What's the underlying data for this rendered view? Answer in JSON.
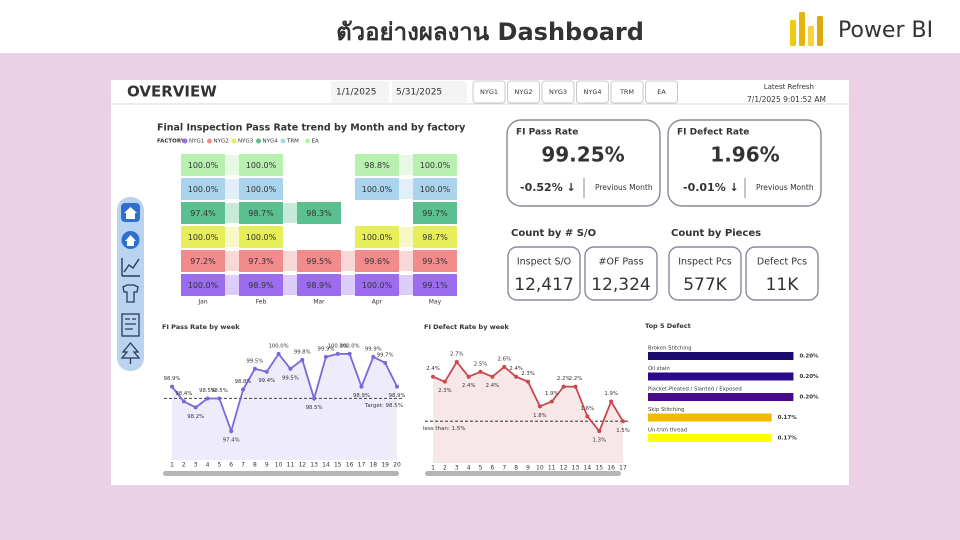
{
  "slide": {
    "title": "ตัวอย่างผลงาน Dashboard",
    "brand": "Power BI"
  },
  "header": {
    "title": "OVERVIEW",
    "start_date": "1/1/2025",
    "end_date": "5/31/2025",
    "filters": [
      "NYG1",
      "NYG2",
      "NYG3",
      "NYG4",
      "TRM",
      "EA"
    ],
    "refresh_label": "Latest Refresh",
    "refresh_time": "7/1/2025 9:01:52 AM"
  },
  "kpis": {
    "pass_rate": {
      "title": "FI Pass Rate",
      "value": "99.25%",
      "delta": "-0.52% ↓",
      "compare": "Previous Month"
    },
    "defect_rate": {
      "title": "FI Defect Rate",
      "value": "1.96%",
      "delta": "-0.01% ↓",
      "compare": "Previous Month"
    }
  },
  "counts": {
    "so": {
      "title": "Count by # S/O",
      "cards": [
        {
          "label": "Inspect S/O",
          "value": "12,417"
        },
        {
          "label": "#OF Pass",
          "value": "12,324"
        }
      ]
    },
    "pieces": {
      "title": "Count by Pieces",
      "cards": [
        {
          "label": "Inspect Pcs",
          "value": "577K"
        },
        {
          "label": "Defect Pcs",
          "value": "11K"
        }
      ]
    }
  },
  "chart_data": [
    {
      "type": "ribbon",
      "title": "Final Inspection Pass Rate trend by Month and by factory",
      "legend_title": "FACTORY",
      "categories": [
        "Jan",
        "Feb",
        "Mar",
        "Apr",
        "May"
      ],
      "series": [
        {
          "name": "NYG1",
          "color": "#9b6cf0",
          "values": [
            100.0,
            98.9,
            98.9,
            100.0,
            99.1
          ],
          "value_labels": [
            "100.0%",
            "98.9%",
            "98.9%",
            "100.0%",
            "99.1%"
          ]
        },
        {
          "name": "NYG2",
          "color": "#f28b8b",
          "values": [
            97.2,
            97.3,
            99.5,
            99.6,
            99.3
          ],
          "value_labels": [
            "97.2%",
            "97.3%",
            "99.5%",
            "99.6%",
            "99.3%"
          ]
        },
        {
          "name": "NYG3",
          "color": "#e6ee5a",
          "values": [
            100.0,
            100.0,
            null,
            100.0,
            98.7
          ],
          "value_labels": [
            "100.0%",
            "100.0%",
            null,
            "100.0%",
            "98.7%"
          ]
        },
        {
          "name": "NYG4",
          "color": "#5cbf8f",
          "values": [
            97.4,
            98.7,
            98.3,
            null,
            99.7
          ],
          "value_labels": [
            "97.4%",
            "98.7%",
            "98.3%",
            null,
            "99.7%"
          ]
        },
        {
          "name": "TRM",
          "color": "#a9d4ec",
          "values": [
            100.0,
            100.0,
            null,
            100.0,
            100.0
          ],
          "value_labels": [
            "100.0%",
            "100.0%",
            null,
            "100.0%",
            "100.0%"
          ]
        },
        {
          "name": "EA",
          "color": "#b8f0b0",
          "values": [
            100.0,
            100.0,
            null,
            98.8,
            100.0
          ],
          "value_labels": [
            "100.0%",
            "100.0%",
            null,
            "98.8%",
            "100.0%"
          ]
        }
      ]
    },
    {
      "type": "line",
      "title": "FI Pass Rate by week",
      "color": "#7b68d8",
      "x": [
        1,
        2,
        3,
        4,
        5,
        6,
        7,
        8,
        9,
        10,
        11,
        12,
        13,
        14,
        15,
        16,
        17,
        18,
        19,
        20
      ],
      "values": [
        98.9,
        98.4,
        98.2,
        98.5,
        98.5,
        97.4,
        98.8,
        99.5,
        99.4,
        100.0,
        99.5,
        99.8,
        98.5,
        99.9,
        100.0,
        100.0,
        98.9,
        99.9,
        99.7,
        98.9
      ],
      "value_labels": [
        "98.9%",
        "98.4%",
        "98.2%",
        "98.5%",
        "98.5%",
        "97.4%",
        "98.8%",
        "99.5%",
        "99.4%",
        "100.0%",
        "99.5%",
        "99.8%",
        "98.5%",
        "99.9%",
        "100.0%",
        "100.0%",
        "98.9%",
        "99.9%",
        "99.7%",
        "98.9%"
      ],
      "xlim": [
        1,
        20
      ],
      "xticks": [
        1,
        2,
        3,
        4,
        5,
        6,
        7,
        8,
        9,
        10,
        11,
        12,
        13,
        14,
        15,
        16,
        17,
        18,
        19,
        20
      ],
      "ylim": [
        97.0,
        100.3
      ],
      "target": 98.5,
      "target_label": "Target: 98.5%"
    },
    {
      "type": "line",
      "title": "FI Defect Rate by week",
      "color": "#c9474f",
      "x": [
        1,
        2,
        3,
        4,
        5,
        6,
        7,
        8,
        9,
        10,
        11,
        12,
        13,
        14,
        15,
        16,
        17
      ],
      "values": [
        2.4,
        2.3,
        2.7,
        2.4,
        2.5,
        2.4,
        2.6,
        2.4,
        2.3,
        1.8,
        1.9,
        2.2,
        2.2,
        1.6,
        1.3,
        1.9,
        1.5
      ],
      "value_labels": [
        "2.4%",
        "2.3%",
        "2.7%",
        "2.4%",
        "2.5%",
        "2.4%",
        "2.6%",
        "2.4%",
        "2.3%",
        "1.8%",
        "1.9%",
        "2.2%",
        "2.2%",
        "1.6%",
        "1.3%",
        "1.9%",
        "1.5%"
      ],
      "xlim": [
        1,
        17
      ],
      "xticks": [
        1,
        2,
        3,
        4,
        5,
        6,
        7,
        8,
        9,
        10,
        11,
        12,
        13,
        14,
        15,
        16,
        17
      ],
      "ylim": [
        1.0,
        2.9
      ],
      "target": 1.5,
      "target_label": "less than: 1.5%"
    },
    {
      "type": "bar",
      "orientation": "horizontal",
      "title": "Top 5 Defect",
      "categories": [
        "Broken Stitching",
        "Oil stain",
        "Placket-Pleated / Slanted / Exposed",
        "Skip Stitching",
        "Un-trim thread"
      ],
      "values": [
        0.2,
        0.2,
        0.2,
        0.17,
        0.17
      ],
      "value_labels": [
        "0.20%",
        "0.20%",
        "0.20%",
        "0.17%",
        "0.17%"
      ],
      "colors": [
        "#1a0a6b",
        "#2a0a8a",
        "#4b0a8a",
        "#f5b800",
        "#ffff00"
      ],
      "xlim": [
        0,
        0.22
      ]
    }
  ]
}
